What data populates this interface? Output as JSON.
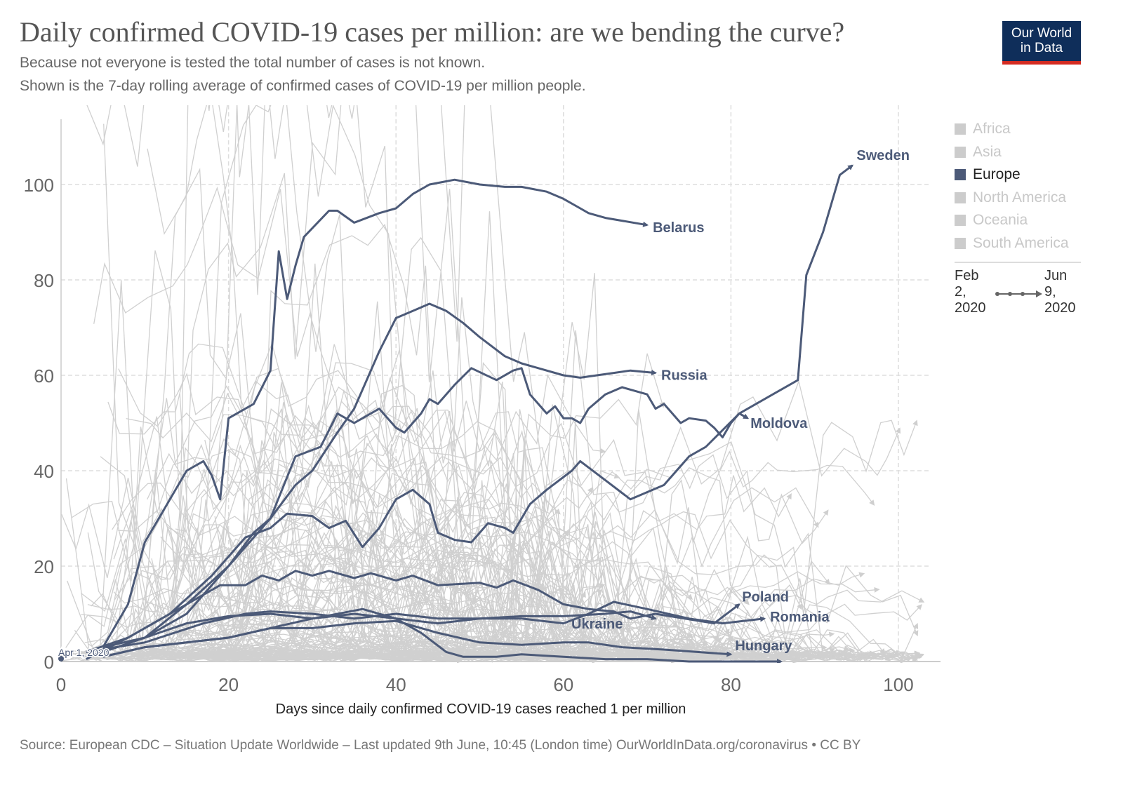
{
  "header": {
    "title": "Daily confirmed COVID-19 cases per million: are we bending the curve?",
    "subtitle_1": "Because not everyone is tested the total number of cases is not known.",
    "subtitle_2": "Shown is the 7-day rolling average of confirmed cases of COVID-19 per million people.",
    "logo_line1": "Our World",
    "logo_line2": "in Data"
  },
  "legend": {
    "items": [
      {
        "label": "Africa",
        "active": false
      },
      {
        "label": "Asia",
        "active": false
      },
      {
        "label": "Europe",
        "active": true
      },
      {
        "label": "North America",
        "active": false
      },
      {
        "label": "Oceania",
        "active": false
      },
      {
        "label": "South America",
        "active": false
      }
    ]
  },
  "timeline": {
    "start": [
      "Feb",
      "2,",
      "2020"
    ],
    "end": [
      "Jun",
      "9,",
      "2020"
    ]
  },
  "footer": {
    "source": "Source: European CDC – Situation Update Worldwide – Last updated 9th June, 10:45 (London time)  OurWorldInData.org/coronavirus • CC BY"
  },
  "colors": {
    "highlight": "#4c5a78",
    "background_series": "#d0d0d0",
    "grid": "#dddddd"
  },
  "chart_data": {
    "type": "line",
    "xlabel": "Days since daily confirmed COVID-19 cases reached 1 per million",
    "ylabel": "",
    "xlim": [
      0,
      104
    ],
    "ylim": [
      0,
      115
    ],
    "xticks": [
      0,
      20,
      40,
      60,
      80,
      100
    ],
    "yticks": [
      0,
      20,
      40,
      60,
      80,
      100
    ],
    "grid": true,
    "annotation": "Apr 1, 2020",
    "series": [
      {
        "name": "Belarus",
        "x": [
          5,
          8,
          10,
          12,
          15,
          17,
          18,
          19,
          20,
          23,
          25,
          26,
          27,
          28,
          29,
          32,
          33,
          35,
          38,
          40,
          42,
          44,
          47,
          50,
          53,
          55,
          58,
          60,
          62,
          63,
          65,
          70
        ],
        "y": [
          3,
          12,
          25,
          31,
          40,
          42,
          39,
          34,
          51,
          54,
          61,
          86,
          76,
          83,
          89,
          94.5,
          94.5,
          92,
          94,
          95,
          98,
          100,
          101,
          100,
          99.5,
          99.5,
          98.5,
          97,
          95,
          94,
          93,
          91.5
        ]
      },
      {
        "name": "Russia",
        "x": [
          5,
          10,
          15,
          20,
          23,
          25,
          28,
          30,
          33,
          35,
          38,
          40,
          42,
          44,
          46,
          48,
          50,
          53,
          55,
          57,
          60,
          62,
          64,
          66,
          68,
          71
        ],
        "y": [
          2,
          5,
          10,
          20,
          27,
          30,
          37,
          40,
          48,
          53,
          65,
          72,
          73.5,
          75,
          73.5,
          71,
          68,
          64,
          62.5,
          61.5,
          60,
          59.5,
          60,
          60.5,
          61,
          60.5
        ]
      },
      {
        "name": "Moldova",
        "x": [
          5,
          10,
          15,
          20,
          25,
          28,
          31,
          33,
          35,
          38,
          40,
          41,
          43,
          44,
          45,
          47,
          49,
          52,
          54,
          55,
          56,
          58,
          59,
          60,
          61,
          62,
          63,
          65,
          67,
          70,
          71,
          72,
          74,
          75,
          77,
          78,
          79,
          80,
          81,
          82
        ],
        "y": [
          2,
          5,
          12,
          20,
          30,
          43,
          45,
          52,
          50,
          53,
          49,
          48,
          52,
          55,
          54,
          58,
          61.5,
          59,
          61,
          61.5,
          56,
          52,
          53.5,
          51,
          51,
          50,
          53,
          56,
          57.5,
          56,
          53,
          54,
          50,
          51,
          50.5,
          49,
          47,
          50,
          52,
          51
        ]
      },
      {
        "name": "Sweden",
        "x": [
          3,
          8,
          13,
          18,
          22,
          25,
          27,
          30,
          32,
          34,
          36,
          38,
          40,
          42,
          44,
          45,
          47,
          49,
          51,
          53,
          54,
          56,
          58,
          61,
          62,
          65,
          68,
          72,
          75,
          77,
          81,
          85,
          88,
          89,
          91,
          92,
          93,
          94.5
        ],
        "y": [
          2,
          5,
          10,
          18,
          26,
          28,
          31,
          30.5,
          28,
          29.5,
          24,
          28,
          34,
          36,
          33,
          27,
          25.5,
          25,
          29,
          28,
          27,
          33,
          36,
          40,
          42,
          38,
          34,
          37,
          43,
          45,
          52,
          56,
          59,
          81,
          90,
          96,
          102,
          104
        ]
      },
      {
        "name": "Poland",
        "x": [
          3,
          8,
          13,
          15,
          19,
          22,
          24,
          26,
          28,
          30,
          32,
          35,
          37,
          40,
          42,
          45,
          50,
          52,
          54,
          57,
          60,
          63,
          66,
          68,
          71,
          78,
          81
        ],
        "y": [
          0.5,
          5,
          10,
          12,
          16,
          16,
          18,
          17,
          19,
          18,
          19,
          17.5,
          18.5,
          17,
          18,
          16,
          16.5,
          15.5,
          17,
          15,
          12,
          11,
          10.5,
          9,
          10,
          8,
          12
        ]
      },
      {
        "name": "Ukraine",
        "x": [
          5,
          10,
          15,
          20,
          25,
          30,
          35,
          40,
          45,
          50,
          55,
          60,
          65,
          68,
          71
        ],
        "y": [
          3,
          5,
          8,
          9.5,
          10,
          9,
          10,
          9,
          8,
          9,
          9.5,
          9.5,
          10,
          10.5,
          9
        ]
      },
      {
        "name": "Romania",
        "x": [
          3,
          10,
          17,
          22,
          25,
          30,
          35,
          40,
          45,
          50,
          55,
          60,
          63,
          66,
          70,
          75,
          79,
          84
        ],
        "y": [
          2,
          4,
          8,
          10,
          10.5,
          10,
          9,
          10,
          9,
          9,
          9,
          8,
          10,
          12.5,
          11,
          9,
          8,
          9
        ]
      },
      {
        "name": "Hungary",
        "x": [
          5,
          10,
          15,
          20,
          25,
          30,
          35,
          40,
          45,
          50,
          55,
          60,
          63,
          67,
          72,
          76,
          80
        ],
        "y": [
          1,
          3,
          4,
          5,
          7,
          7,
          8,
          8.5,
          6,
          4,
          3.5,
          4,
          4,
          3,
          2.5,
          2,
          1.5
        ]
      },
      {
        "name": "",
        "x": [
          5,
          10,
          20,
          30,
          36,
          40,
          43,
          46,
          48,
          52,
          55,
          60,
          65,
          70,
          75,
          86
        ],
        "y": [
          1,
          3,
          5,
          9,
          11,
          9,
          6,
          2,
          1,
          1,
          1.5,
          1,
          0.5,
          0.5,
          0,
          0
        ]
      }
    ]
  }
}
